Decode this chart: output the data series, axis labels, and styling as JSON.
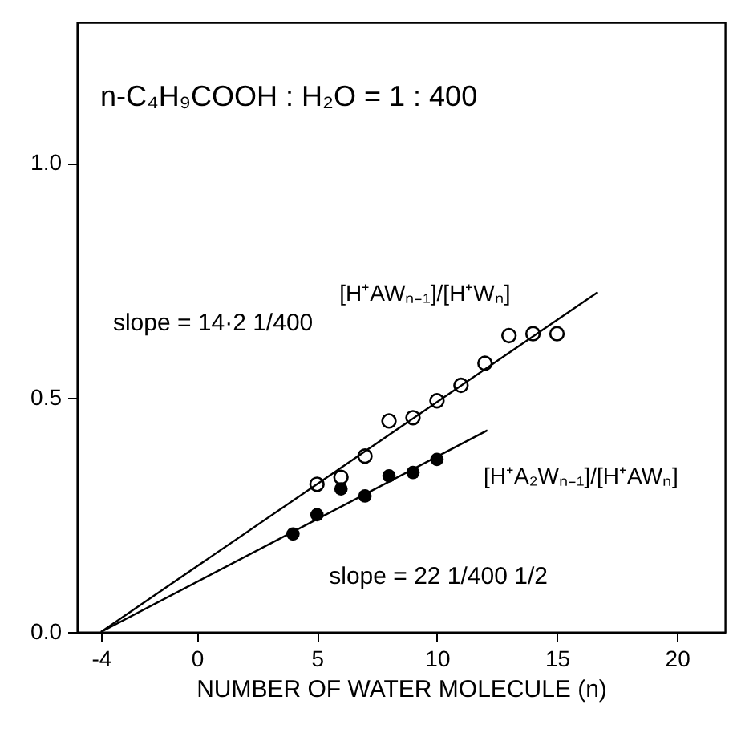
{
  "chart_data": {
    "type": "scatter",
    "title": "n-C₄H₉COOH : H₂O = 1 : 400",
    "xlabel": "NUMBER OF WATER MOLECULE (n)",
    "xlim": [
      -5,
      22
    ],
    "xticks": [
      -4,
      0,
      5,
      10,
      15,
      20
    ],
    "ylim": [
      0,
      1.3
    ],
    "yticks": [
      {
        "value": 0,
        "label": "0.0"
      },
      {
        "value": 0.5,
        "label": "0.5"
      },
      {
        "value": 1,
        "label": "1.0"
      }
    ],
    "grid": false,
    "series": [
      {
        "name": "[H⁺AWₙ₋₁]/[H⁺Wₙ]",
        "color": "#000000",
        "marker": "circle",
        "x": [
          5,
          6,
          7,
          8,
          9,
          10,
          11,
          12,
          13,
          14,
          15
        ],
        "values": [
          0.315,
          0.33,
          0.375,
          0.45,
          0.457,
          0.493,
          0.526,
          0.573,
          0.632,
          0.636,
          0.636
        ]
      },
      {
        "name": "[H⁺A₂Wₙ₋₁]/[H⁺AWₙ]",
        "color": "#000000",
        "marker": "circle",
        "x": [
          4,
          5,
          6,
          7,
          8,
          9,
          10
        ],
        "values": [
          0.209,
          0.25,
          0.305,
          0.29,
          0.333,
          0.34,
          0.368
        ]
      },
      {
        "type": "line",
        "color": "#000000",
        "x": [
          -4,
          16.7
        ],
        "values": [
          0,
          0.725
        ]
      },
      {
        "type": "line",
        "color": "#000000",
        "x": [
          -4,
          12.1
        ],
        "values": [
          0,
          0.43
        ]
      }
    ],
    "annotations": [
      "slope = 14·2 1/400",
      "slope = 22 1/400 1/2"
    ]
  }
}
